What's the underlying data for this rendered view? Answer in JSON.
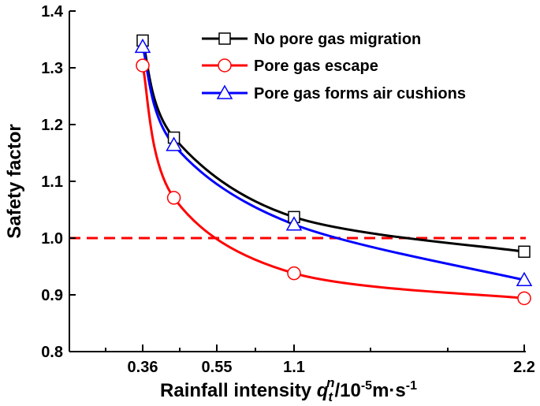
{
  "chart_data": {
    "type": "line",
    "xlabel_main": "Rainfall intensity ",
    "xlabel_q": "q",
    "xlabel_sub": "t",
    "xlabel_sup": "n",
    "xlabel_unit": "/10",
    "xlabel_exp1": "-5",
    "xlabel_unit2": "m·s",
    "xlabel_exp2": "-1",
    "ylabel": "Safety factor",
    "x_ticks": [
      0.36,
      0.55,
      1.1,
      2.2
    ],
    "x_tick_labels": [
      "0.36",
      "0.55",
      "1.1",
      "2.2"
    ],
    "y_ticks": [
      0.8,
      0.9,
      1.0,
      1.1,
      1.2,
      1.3,
      1.4
    ],
    "y_tick_labels": [
      "0.8",
      "0.9",
      "1.0",
      "1.1",
      "1.2",
      "1.3",
      "1.4"
    ],
    "ylim": [
      0.8,
      1.4
    ],
    "reference_line": {
      "y": 1.0,
      "color": "#ff0000",
      "style": "dashed"
    },
    "legend_position": "top-right",
    "series": [
      {
        "name": "No pore gas migration",
        "color": "#000000",
        "marker": "square",
        "x": [
          0.36,
          0.44,
          1.1,
          2.2
        ],
        "values": [
          1.348,
          1.177,
          1.037,
          0.976
        ]
      },
      {
        "name": "Pore gas escape",
        "color": "#ff0000",
        "marker": "circle",
        "x": [
          0.36,
          0.44,
          1.1,
          2.2
        ],
        "values": [
          1.304,
          1.071,
          0.938,
          0.894
        ]
      },
      {
        "name": "Pore gas forms air cushions",
        "color": "#0000ff",
        "marker": "triangle",
        "x": [
          0.36,
          0.44,
          1.1,
          2.2
        ],
        "values": [
          1.337,
          1.164,
          1.024,
          0.926
        ]
      }
    ]
  }
}
